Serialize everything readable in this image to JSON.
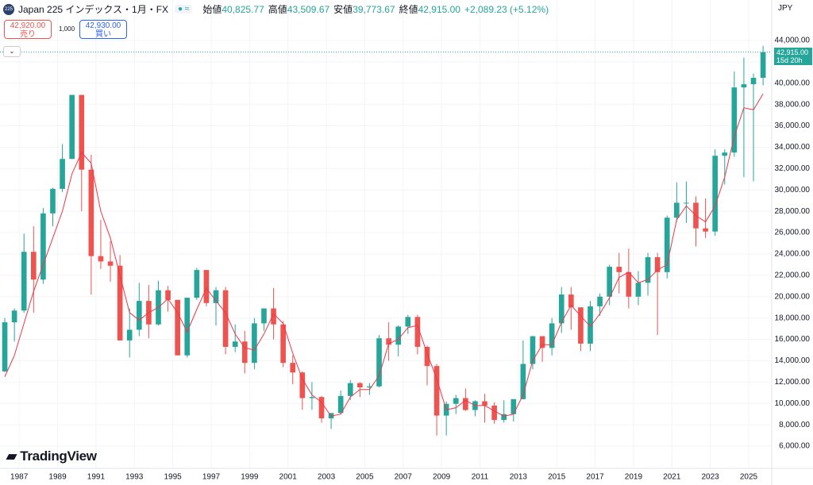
{
  "header": {
    "icon": "225",
    "symbol": "Japan 225 インデックス・1月・FX",
    "ohlc": [
      {
        "label": "始値",
        "value": "40,825.77"
      },
      {
        "label": "高値",
        "value": "43,509.67"
      },
      {
        "label": "安値",
        "value": "39,773.67"
      },
      {
        "label": "終値",
        "value": "42,915.00"
      }
    ],
    "change": "+2,089.23 (+5.12%)",
    "sell": {
      "price": "42,920.00",
      "label": "売り"
    },
    "quantity": "1,000",
    "buy": {
      "price": "42,930.00",
      "label": "買い"
    }
  },
  "currency": "JPY",
  "logo": "TradingView",
  "chart_data": {
    "type": "candlestick",
    "up_color": "#26a69a",
    "down_color": "#ef5350",
    "x": [
      1986.25,
      1986.75,
      1987.25,
      1987.75,
      1988.25,
      1988.75,
      1989.25,
      1989.75,
      1990.25,
      1990.75,
      1991.25,
      1991.75,
      1992.25,
      1992.75,
      1993.25,
      1993.75,
      1994.25,
      1994.75,
      1995.25,
      1995.75,
      1996.25,
      1996.75,
      1997.25,
      1997.75,
      1998.25,
      1998.75,
      1999.25,
      1999.75,
      2000.25,
      2000.75,
      2001.25,
      2001.75,
      2002.25,
      2002.75,
      2003.25,
      2003.75,
      2004.25,
      2004.75,
      2005.25,
      2005.75,
      2006.25,
      2006.75,
      2007.25,
      2007.75,
      2008.25,
      2008.75,
      2009.25,
      2009.75,
      2010.25,
      2010.75,
      2011.25,
      2011.75,
      2012.25,
      2012.75,
      2013.25,
      2013.75,
      2014.25,
      2014.75,
      2015.25,
      2015.75,
      2016.25,
      2016.75,
      2017.25,
      2017.75,
      2018.25,
      2018.75,
      2019.25,
      2019.75,
      2020.25,
      2020.75,
      2021.25,
      2021.75,
      2022.25,
      2022.75,
      2023.25,
      2023.75,
      2024.25,
      2024.75,
      2025.25,
      2025.75
    ],
    "open": [
      13000,
      17600,
      18700,
      24200,
      21600,
      27800,
      30100,
      32900,
      38900,
      31900,
      23800,
      23300,
      22900,
      15900,
      16900,
      19600,
      17400,
      20600,
      19700,
      14500,
      19900,
      22500,
      19400,
      20600,
      15300,
      15800,
      13800,
      17500,
      18900,
      17400,
      13800,
      12900,
      10500,
      10600,
      8600,
      9100,
      10700,
      11900,
      11500,
      11600,
      16100,
      15500,
      17200,
      18100,
      15300,
      13500,
      8860,
      9960,
      10500,
      9380,
      10200,
      9800,
      8450,
      9000,
      10400,
      13700,
      16300,
      15200,
      17500,
      20200,
      19000,
      15600,
      19100,
      20000,
      22800,
      22300,
      20000,
      21300,
      23700,
      22300,
      27400,
      28800,
      28800,
      26400,
      26100,
      33200,
      33500,
      39600,
      39900,
      40500
    ],
    "high": [
      18000,
      18900,
      25900,
      26600,
      28300,
      30200,
      34300,
      38900,
      38900,
      33300,
      27200,
      25200,
      23900,
      18900,
      21300,
      21100,
      21500,
      21000,
      19700,
      19900,
      22700,
      22500,
      20900,
      20900,
      17400,
      16800,
      18000,
      18900,
      20800,
      17700,
      14500,
      13000,
      12000,
      10700,
      9000,
      11200,
      12200,
      12000,
      11900,
      16400,
      17600,
      17300,
      18300,
      18300,
      15400,
      13700,
      10200,
      10800,
      11400,
      10300,
      10900,
      10100,
      10300,
      10400,
      15900,
      16300,
      16300,
      18000,
      20900,
      20900,
      19000,
      19600,
      20300,
      23000,
      24100,
      24500,
      22400,
      24100,
      24100,
      27600,
      30700,
      30800,
      29400,
      29200,
      33800,
      33800,
      41100,
      42400,
      40900,
      43500
    ],
    "low": [
      12900,
      15800,
      18500,
      18500,
      21200,
      26600,
      29800,
      32900,
      28000,
      20200,
      22600,
      21400,
      15900,
      14300,
      16300,
      16100,
      17300,
      18600,
      14500,
      14300,
      19700,
      19100,
      17300,
      14600,
      14800,
      12800,
      13200,
      16800,
      16000,
      13400,
      11800,
      9400,
      9400,
      8200,
      7600,
      9000,
      10300,
      10600,
      10800,
      11500,
      14000,
      14400,
      16500,
      14600,
      11700,
      6990,
      7000,
      9000,
      9300,
      8800,
      8200,
      8100,
      8200,
      8300,
      10400,
      13200,
      13900,
      14500,
      16600,
      16900,
      14900,
      14900,
      18200,
      19200,
      20300,
      18900,
      19200,
      20100,
      16400,
      21700,
      27000,
      26900,
      24700,
      25500,
      25700,
      30500,
      33100,
      31200,
      30800,
      39800
    ],
    "close": [
      17600,
      18700,
      24200,
      21600,
      27800,
      30100,
      32900,
      38900,
      31900,
      23800,
      23300,
      22900,
      15900,
      16900,
      19600,
      17400,
      20600,
      19700,
      14500,
      19900,
      22500,
      19400,
      20600,
      15300,
      15800,
      13800,
      17500,
      18900,
      17400,
      13800,
      12900,
      10500,
      10600,
      8600,
      9100,
      10700,
      11900,
      11500,
      11600,
      16100,
      15500,
      17200,
      18100,
      15300,
      13500,
      8860,
      9960,
      10500,
      9380,
      10200,
      9800,
      8450,
      9000,
      10400,
      13700,
      16300,
      15200,
      17500,
      20200,
      19000,
      15600,
      19100,
      20000,
      22800,
      22300,
      20000,
      21300,
      23700,
      22300,
      27400,
      28800,
      28800,
      26400,
      26100,
      33200,
      33500,
      39600,
      39900,
      40500,
      42900
    ],
    "ma": {
      "color": "#f23645",
      "values": [
        12500,
        14500,
        17500,
        20500,
        23000,
        25500,
        28000,
        31500,
        33500,
        32500,
        28000,
        25500,
        22000,
        18500,
        17800,
        18500,
        19000,
        19800,
        18500,
        16700,
        18800,
        20800,
        19600,
        18500,
        16500,
        15200,
        15000,
        16500,
        18400,
        17500,
        14700,
        12300,
        10800,
        10100,
        8800,
        9000,
        10600,
        11300,
        11300,
        12600,
        15600,
        16000,
        17100,
        17300,
        14700,
        12300,
        9400,
        9600,
        10300,
        9800,
        9800,
        9300,
        8800,
        9000,
        10800,
        14000,
        15500,
        15500,
        17600,
        19200,
        18200,
        17200,
        18400,
        19900,
        21800,
        22300,
        21300,
        21600,
        22500,
        23000,
        27200,
        28500,
        27600,
        27000,
        28500,
        31200,
        35000,
        37700,
        37500,
        39000
      ]
    },
    "last_price": {
      "value": 42915,
      "label": "42,915.00"
    },
    "countdown": "15d 20h",
    "xlim": [
      1986,
      2026.2
    ],
    "xticks": [
      1987,
      1989,
      1991,
      1993,
      1995,
      1997,
      1999,
      2001,
      2003,
      2005,
      2007,
      2009,
      2011,
      2013,
      2015,
      2017,
      2019,
      2021,
      2023,
      2025
    ],
    "ylim": [
      3920,
      47790
    ],
    "yticks": [
      {
        "value": 6000,
        "label": "6,000.00"
      },
      {
        "value": 8000,
        "label": "8,000.00"
      },
      {
        "value": 10000,
        "label": "10,000.00"
      },
      {
        "value": 12000,
        "label": "12,000.00"
      },
      {
        "value": 14000,
        "label": "14,000.00"
      },
      {
        "value": 16000,
        "label": "16,000.00"
      },
      {
        "value": 18000,
        "label": "18,000.00"
      },
      {
        "value": 20000,
        "label": "20,000.00"
      },
      {
        "value": 22000,
        "label": "22,000.00"
      },
      {
        "value": 24000,
        "label": "24,000.00"
      },
      {
        "value": 26000,
        "label": "26,000.00"
      },
      {
        "value": 28000,
        "label": "28,000.00"
      },
      {
        "value": 30000,
        "label": "30,000.00"
      },
      {
        "value": 32000,
        "label": "32,000.00"
      },
      {
        "value": 34000,
        "label": "34,000.00"
      },
      {
        "value": 36000,
        "label": "36,000.00"
      },
      {
        "value": 38000,
        "label": "38,000.00"
      },
      {
        "value": 40000,
        "label": "40,000.00"
      },
      {
        "value": 42000,
        "label": "42,000.00"
      },
      {
        "value": 44000,
        "label": "44,000.00"
      }
    ]
  }
}
